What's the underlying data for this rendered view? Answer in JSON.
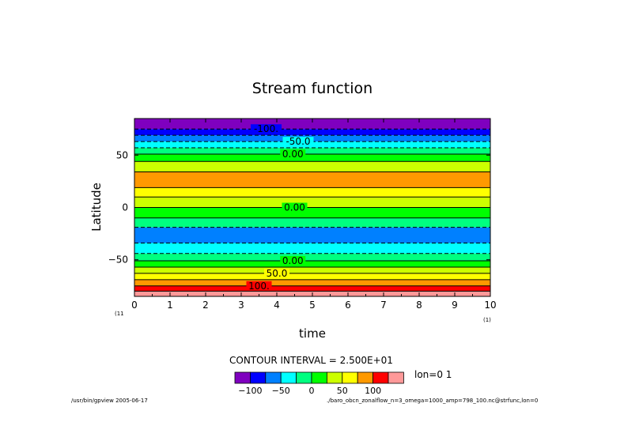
{
  "chart_data": {
    "type": "heatmap",
    "title": "Stream function",
    "xlabel": "time",
    "ylabel": "Latitude",
    "xlim": [
      0,
      10
    ],
    "ylim": [
      -85,
      85
    ],
    "x_ticks": [
      "0",
      "1",
      "2",
      "3",
      "4",
      "5",
      "6",
      "7",
      "8",
      "9",
      "10"
    ],
    "y_ticks": [
      {
        "value": 50,
        "label": "50"
      },
      {
        "value": 0,
        "label": "0"
      },
      {
        "value": -50,
        "label": "-50"
      }
    ],
    "x_index_left": "(11",
    "x_index_right": "(1)",
    "contour_interval_text": "CONTOUR INTERVAL = 2.500E+01",
    "slice_text": "lon=0 1",
    "colorbar": {
      "levels": [
        -125,
        -100,
        -75,
        -50,
        -25,
        0,
        25,
        50,
        75,
        100,
        125
      ],
      "colors": [
        "#7f00bf",
        "#0000ff",
        "#0080ff",
        "#00ffff",
        "#00ff80",
        "#00ff00",
        "#ccff00",
        "#ffff00",
        "#ff9900",
        "#ff0000",
        "#ff9999"
      ],
      "tick_labels": [
        {
          "level": -100,
          "label": "-100"
        },
        {
          "level": -50,
          "label": "-50"
        },
        {
          "level": 0,
          "label": "0"
        },
        {
          "level": 50,
          "label": "50"
        },
        {
          "level": 100,
          "label": "100"
        }
      ]
    },
    "bands": [
      {
        "lat_top": 85,
        "lat_bottom": 75,
        "color": "#7f00bf"
      },
      {
        "lat_top": 75,
        "lat_bottom": 69,
        "color": "#0000ff"
      },
      {
        "lat_top": 69,
        "lat_bottom": 63,
        "color": "#0080ff"
      },
      {
        "lat_top": 63,
        "lat_bottom": 57,
        "color": "#00ffff"
      },
      {
        "lat_top": 57,
        "lat_bottom": 51,
        "color": "#00ff80"
      },
      {
        "lat_top": 51,
        "lat_bottom": 44,
        "color": "#00ff00"
      },
      {
        "lat_top": 44,
        "lat_bottom": 34,
        "color": "#ccff00"
      },
      {
        "lat_top": 34,
        "lat_bottom": 19,
        "color": "#ffff00"
      },
      {
        "lat_top": 19,
        "lat_bottom": 19,
        "color": "#ff9900"
      },
      {
        "lat_top": 19,
        "lat_bottom": 10,
        "color": "#ffff00"
      },
      {
        "lat_top": 10,
        "lat_bottom": 0,
        "color": "#ccff00"
      },
      {
        "lat_top": 0,
        "lat_bottom": -10,
        "color": "#00ff00"
      },
      {
        "lat_top": -10,
        "lat_bottom": -19,
        "color": "#00ff80"
      },
      {
        "lat_top": -19,
        "lat_bottom": -34,
        "color": "#0080ff"
      },
      {
        "lat_top": -34,
        "lat_bottom": -44,
        "color": "#00ffff"
      },
      {
        "lat_top": -44,
        "lat_bottom": -51,
        "color": "#00ff80"
      },
      {
        "lat_top": -51,
        "lat_bottom": -57,
        "color": "#00ff00"
      },
      {
        "lat_top": -57,
        "lat_bottom": -63,
        "color": "#ccff00"
      },
      {
        "lat_top": -63,
        "lat_bottom": -69,
        "color": "#ffff00"
      },
      {
        "lat_top": -69,
        "lat_bottom": -75,
        "color": "#ff9900"
      },
      {
        "lat_top": -75,
        "lat_bottom": -80,
        "color": "#ff0000"
      },
      {
        "lat_top": -80,
        "lat_bottom": -85,
        "color": "#ff9999"
      }
    ],
    "orange_band": {
      "lat_top": 34,
      "lat_bottom": 19,
      "color": "#ff9900"
    },
    "contours": [
      {
        "lat": 75,
        "dashed": true
      },
      {
        "lat": 69,
        "dashed": true
      },
      {
        "lat": 63,
        "dashed": true
      },
      {
        "lat": 57,
        "dashed": true
      },
      {
        "lat": 51,
        "dashed": false
      },
      {
        "lat": 44,
        "dashed": false
      },
      {
        "lat": 34,
        "dashed": false
      },
      {
        "lat": 19,
        "dashed": false
      },
      {
        "lat": 10,
        "dashed": false
      },
      {
        "lat": 0,
        "dashed": false
      },
      {
        "lat": -10,
        "dashed": false
      },
      {
        "lat": -19,
        "dashed": true
      },
      {
        "lat": -34,
        "dashed": true
      },
      {
        "lat": -44,
        "dashed": true
      },
      {
        "lat": -51,
        "dashed": false
      },
      {
        "lat": -57,
        "dashed": false
      },
      {
        "lat": -63,
        "dashed": false
      },
      {
        "lat": -69,
        "dashed": false
      },
      {
        "lat": -75,
        "dashed": false
      },
      {
        "lat": -80,
        "dashed": false
      }
    ],
    "contour_labels": [
      {
        "text": "-100.",
        "x": 3.7,
        "lat": 75
      },
      {
        "text": "-50.0",
        "x": 4.6,
        "lat": 63
      },
      {
        "text": "0.00",
        "x": 4.45,
        "lat": 51
      },
      {
        "text": "0.00",
        "x": 4.5,
        "lat": 0
      },
      {
        "text": "0.00",
        "x": 4.45,
        "lat": -51
      },
      {
        "text": "50.0",
        "x": 4.0,
        "lat": -63
      },
      {
        "text": "100.",
        "x": 3.5,
        "lat": -75
      }
    ]
  },
  "footer": {
    "left": "/usr/bin/gpview  2005-06-17",
    "right": "./baro_obcn_zonalflow_n=3_omega=1000_amp=798_100.nc@strfunc,lon=0"
  }
}
